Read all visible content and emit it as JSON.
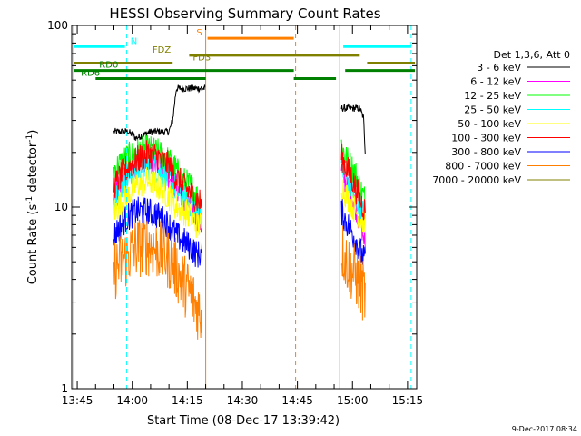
{
  "chart_data": {
    "type": "line",
    "title": "HESSI Observing Summary Count Rates",
    "xlabel": "Start Time (08-Dec-17 13:39:42)",
    "ylabel": "Count Rate (s^-1 detector^-1)",
    "ylabel_parts": {
      "main": "Count Rate (s",
      "sup1": "-1",
      "mid": " detector",
      "sup2": "-1",
      "end": ")"
    },
    "yscale": "log",
    "ylim": [
      1,
      100
    ],
    "xlim_min": [
      823.5,
      917.5
    ],
    "ytick_labels": [
      "1",
      "10",
      "100"
    ],
    "xtick_labels": [
      "13:45",
      "14:00",
      "14:15",
      "14:30",
      "14:45",
      "15:00",
      "15:15"
    ],
    "xtick_min": [
      825,
      840,
      855,
      870,
      885,
      900,
      915
    ],
    "timestamp": "9-Dec-2017 08:34",
    "legend_header": "Det 1,3,6, Att 0",
    "legend_position": "right",
    "series": [
      {
        "name": "3 - 6 keV",
        "color": "#000000",
        "seg1": [
          [
            835,
            26
          ],
          [
            839,
            26
          ],
          [
            841,
            24
          ],
          [
            845,
            26
          ],
          [
            850,
            26
          ],
          [
            851,
            30
          ],
          [
            852,
            45
          ],
          [
            860,
            45
          ]
        ],
        "seg2": [
          [
            897,
            35
          ],
          [
            902,
            35
          ],
          [
            903,
            31
          ],
          [
            903.5,
            20
          ]
        ]
      },
      {
        "name": "6 - 12 keV",
        "color": "#ff00ff",
        "seg1": [
          [
            835,
            12
          ],
          [
            838,
            15
          ],
          [
            841,
            17
          ],
          [
            844,
            19
          ],
          [
            847,
            18
          ],
          [
            850,
            15
          ],
          [
            852,
            13
          ],
          [
            854,
            11
          ],
          [
            856,
            10
          ],
          [
            857.5,
            9
          ],
          [
            859,
            8
          ]
        ],
        "seg2": [
          [
            897,
            16
          ],
          [
            898,
            14
          ],
          [
            899.5,
            12
          ],
          [
            901,
            10
          ],
          [
            902.5,
            8
          ],
          [
            903.5,
            6
          ]
        ]
      },
      {
        "name": "12 - 25 keV",
        "color": "#00ff00",
        "seg1": [
          [
            835,
            16
          ],
          [
            838,
            18.5
          ],
          [
            841,
            20
          ],
          [
            844,
            21
          ],
          [
            847,
            20
          ],
          [
            850,
            18
          ],
          [
            852,
            16
          ],
          [
            854,
            14
          ],
          [
            856,
            13
          ],
          [
            857.5,
            11.5
          ],
          [
            859,
            11
          ]
        ],
        "seg2": [
          [
            897,
            22
          ],
          [
            898,
            19
          ],
          [
            899.5,
            17
          ],
          [
            901,
            15
          ],
          [
            902.5,
            12
          ],
          [
            903.5,
            11
          ]
        ]
      },
      {
        "name": "25 - 50 keV",
        "color": "#00ffff",
        "seg1": [
          [
            835,
            11.5
          ],
          [
            838,
            14
          ],
          [
            841,
            16
          ],
          [
            844,
            17
          ],
          [
            847,
            16
          ],
          [
            850,
            14
          ],
          [
            852,
            12.5
          ],
          [
            854,
            11
          ],
          [
            856,
            10.5
          ],
          [
            857.5,
            9.5
          ],
          [
            859,
            9
          ]
        ],
        "seg2": [
          [
            897,
            17
          ],
          [
            898,
            15
          ],
          [
            899.5,
            13
          ],
          [
            901,
            11
          ],
          [
            902.5,
            9.5
          ],
          [
            903.5,
            9
          ]
        ]
      },
      {
        "name": "50 - 100 keV",
        "color": "#ffff00",
        "seg1": [
          [
            835,
            9.5
          ],
          [
            838,
            11
          ],
          [
            841,
            13
          ],
          [
            844,
            14
          ],
          [
            847,
            13
          ],
          [
            850,
            11.5
          ],
          [
            852,
            10
          ],
          [
            854,
            9.5
          ],
          [
            856,
            9
          ],
          [
            857.5,
            8
          ],
          [
            859,
            8
          ]
        ],
        "seg2": [
          [
            897,
            13.5
          ],
          [
            898,
            12
          ],
          [
            899.5,
            10.5
          ],
          [
            901,
            9.5
          ],
          [
            902.5,
            8.5
          ],
          [
            903.5,
            8
          ]
        ]
      },
      {
        "name": "100 - 300 keV",
        "color": "#ff0000",
        "seg1": [
          [
            835,
            13
          ],
          [
            838,
            16
          ],
          [
            841,
            18
          ],
          [
            844,
            19.5
          ],
          [
            847,
            19
          ],
          [
            850,
            17
          ],
          [
            852,
            14.5
          ],
          [
            854,
            13
          ],
          [
            856,
            12
          ],
          [
            857.5,
            11
          ],
          [
            859,
            10.5
          ]
        ],
        "seg2": [
          [
            897,
            19
          ],
          [
            898,
            17
          ],
          [
            899.5,
            15
          ],
          [
            901,
            12.5
          ],
          [
            902.5,
            10.5
          ],
          [
            903.5,
            9.5
          ]
        ]
      },
      {
        "name": "300 - 800 keV",
        "color": "#0000ff",
        "seg1": [
          [
            835,
            7
          ],
          [
            838,
            8.5
          ],
          [
            841,
            9.5
          ],
          [
            844,
            9.5
          ],
          [
            847,
            9
          ],
          [
            850,
            8
          ],
          [
            852,
            7
          ],
          [
            854,
            6.5
          ],
          [
            856,
            6
          ],
          [
            857.5,
            5.5
          ],
          [
            859,
            5.5
          ]
        ],
        "seg2": [
          [
            897,
            9.5
          ],
          [
            898,
            8.5
          ],
          [
            899.5,
            7.5
          ],
          [
            901,
            6.5
          ],
          [
            902.5,
            5.5
          ],
          [
            903.5,
            5
          ]
        ]
      },
      {
        "name": "800 - 7000 keV",
        "color": "#ff8000",
        "seg1": [
          [
            835,
            4.5
          ],
          [
            838,
            5.2
          ],
          [
            841,
            6
          ],
          [
            844,
            6.2
          ],
          [
            847,
            5.8
          ],
          [
            850,
            5.2
          ],
          [
            852,
            4.5
          ],
          [
            854,
            3.8
          ],
          [
            856,
            3.3
          ],
          [
            857.5,
            2.8
          ],
          [
            859,
            2.6
          ]
        ],
        "seg2": [
          [
            897,
            6
          ],
          [
            898,
            5.2
          ],
          [
            899.5,
            4.6
          ],
          [
            901,
            4.1
          ],
          [
            902.5,
            3.6
          ],
          [
            903.5,
            3.2
          ]
        ]
      },
      {
        "name": "7000 - 20000 keV",
        "color": "#808000",
        "seg1": [],
        "seg2": []
      }
    ],
    "vertical_lines": [
      {
        "x": 824,
        "color": "#00ffff",
        "style": "solid"
      },
      {
        "x": 838.5,
        "color": "#00ffff",
        "style": "dashed"
      },
      {
        "x": 860,
        "color": "#ff8000",
        "style": "solid"
      },
      {
        "x": 884.5,
        "color": "#ff8000",
        "style": "dashed"
      },
      {
        "x": 896.5,
        "color": "#00ffff",
        "style": "solid"
      },
      {
        "x": 916,
        "color": "#00ffff",
        "style": "dashed"
      }
    ],
    "flag_bars": [
      {
        "label": "N",
        "color": "#00ffff",
        "y": 76.5,
        "segments": [
          [
            824,
            838
          ],
          [
            897.5,
            916
          ]
        ],
        "label_x": 839.5
      },
      {
        "label": "S",
        "color": "#ff8000",
        "y": 85,
        "segments": [
          [
            860.5,
            884
          ]
        ],
        "label_x": 857.5
      },
      {
        "label": "FDZ",
        "color": "#808000",
        "y": 68.5,
        "segments": [
          [
            855.5,
            902
          ]
        ],
        "label_x": 845.5
      },
      {
        "label": "FD3",
        "color": "#808000",
        "y": 62,
        "segments": [
          [
            824,
            851
          ],
          [
            904,
            917
          ]
        ],
        "label_x": 856.5
      },
      {
        "label": "RD0",
        "color": "#008000",
        "y": 56.5,
        "segments": [
          [
            824,
            884
          ],
          [
            898,
            917
          ]
        ],
        "label_x": 831
      },
      {
        "label": "RD6",
        "color": "#008000",
        "y": 51,
        "segments": [
          [
            830,
            860
          ],
          [
            884,
            895.5
          ]
        ],
        "label_x": 826
      }
    ]
  }
}
